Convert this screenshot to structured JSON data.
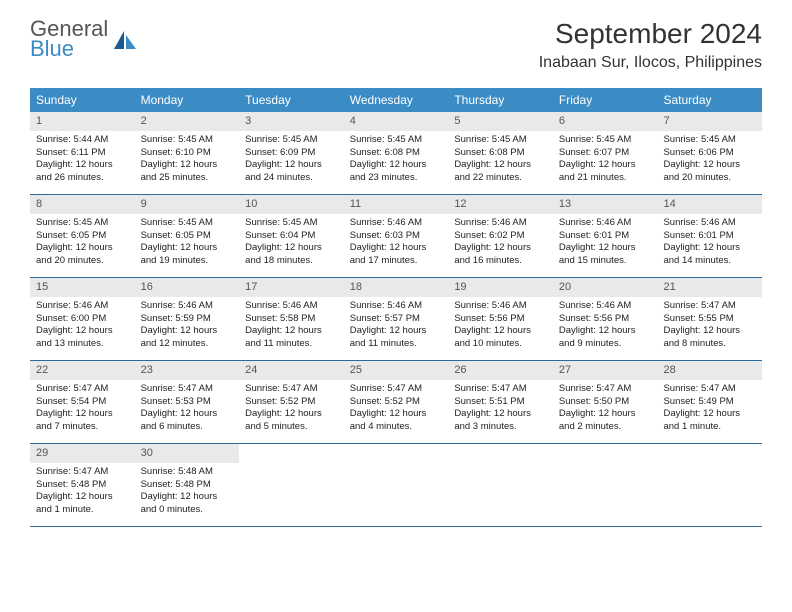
{
  "brand": {
    "line1": "General",
    "line2": "Blue"
  },
  "title": "September 2024",
  "location": "Inabaan Sur, Ilocos, Philippines",
  "colors": {
    "header_bg": "#3b8bc4",
    "header_text": "#ffffff",
    "daynum_bg": "#e7e9ea",
    "daynum_text": "#555555",
    "week_border": "#2d6a9c",
    "body_text": "#222222",
    "page_bg": "#ffffff"
  },
  "day_names": [
    "Sunday",
    "Monday",
    "Tuesday",
    "Wednesday",
    "Thursday",
    "Friday",
    "Saturday"
  ],
  "days": [
    {
      "n": "1",
      "sunrise": "Sunrise: 5:44 AM",
      "sunset": "Sunset: 6:11 PM",
      "day1": "Daylight: 12 hours",
      "day2": "and 26 minutes."
    },
    {
      "n": "2",
      "sunrise": "Sunrise: 5:45 AM",
      "sunset": "Sunset: 6:10 PM",
      "day1": "Daylight: 12 hours",
      "day2": "and 25 minutes."
    },
    {
      "n": "3",
      "sunrise": "Sunrise: 5:45 AM",
      "sunset": "Sunset: 6:09 PM",
      "day1": "Daylight: 12 hours",
      "day2": "and 24 minutes."
    },
    {
      "n": "4",
      "sunrise": "Sunrise: 5:45 AM",
      "sunset": "Sunset: 6:08 PM",
      "day1": "Daylight: 12 hours",
      "day2": "and 23 minutes."
    },
    {
      "n": "5",
      "sunrise": "Sunrise: 5:45 AM",
      "sunset": "Sunset: 6:08 PM",
      "day1": "Daylight: 12 hours",
      "day2": "and 22 minutes."
    },
    {
      "n": "6",
      "sunrise": "Sunrise: 5:45 AM",
      "sunset": "Sunset: 6:07 PM",
      "day1": "Daylight: 12 hours",
      "day2": "and 21 minutes."
    },
    {
      "n": "7",
      "sunrise": "Sunrise: 5:45 AM",
      "sunset": "Sunset: 6:06 PM",
      "day1": "Daylight: 12 hours",
      "day2": "and 20 minutes."
    },
    {
      "n": "8",
      "sunrise": "Sunrise: 5:45 AM",
      "sunset": "Sunset: 6:05 PM",
      "day1": "Daylight: 12 hours",
      "day2": "and 20 minutes."
    },
    {
      "n": "9",
      "sunrise": "Sunrise: 5:45 AM",
      "sunset": "Sunset: 6:05 PM",
      "day1": "Daylight: 12 hours",
      "day2": "and 19 minutes."
    },
    {
      "n": "10",
      "sunrise": "Sunrise: 5:45 AM",
      "sunset": "Sunset: 6:04 PM",
      "day1": "Daylight: 12 hours",
      "day2": "and 18 minutes."
    },
    {
      "n": "11",
      "sunrise": "Sunrise: 5:46 AM",
      "sunset": "Sunset: 6:03 PM",
      "day1": "Daylight: 12 hours",
      "day2": "and 17 minutes."
    },
    {
      "n": "12",
      "sunrise": "Sunrise: 5:46 AM",
      "sunset": "Sunset: 6:02 PM",
      "day1": "Daylight: 12 hours",
      "day2": "and 16 minutes."
    },
    {
      "n": "13",
      "sunrise": "Sunrise: 5:46 AM",
      "sunset": "Sunset: 6:01 PM",
      "day1": "Daylight: 12 hours",
      "day2": "and 15 minutes."
    },
    {
      "n": "14",
      "sunrise": "Sunrise: 5:46 AM",
      "sunset": "Sunset: 6:01 PM",
      "day1": "Daylight: 12 hours",
      "day2": "and 14 minutes."
    },
    {
      "n": "15",
      "sunrise": "Sunrise: 5:46 AM",
      "sunset": "Sunset: 6:00 PM",
      "day1": "Daylight: 12 hours",
      "day2": "and 13 minutes."
    },
    {
      "n": "16",
      "sunrise": "Sunrise: 5:46 AM",
      "sunset": "Sunset: 5:59 PM",
      "day1": "Daylight: 12 hours",
      "day2": "and 12 minutes."
    },
    {
      "n": "17",
      "sunrise": "Sunrise: 5:46 AM",
      "sunset": "Sunset: 5:58 PM",
      "day1": "Daylight: 12 hours",
      "day2": "and 11 minutes."
    },
    {
      "n": "18",
      "sunrise": "Sunrise: 5:46 AM",
      "sunset": "Sunset: 5:57 PM",
      "day1": "Daylight: 12 hours",
      "day2": "and 11 minutes."
    },
    {
      "n": "19",
      "sunrise": "Sunrise: 5:46 AM",
      "sunset": "Sunset: 5:56 PM",
      "day1": "Daylight: 12 hours",
      "day2": "and 10 minutes."
    },
    {
      "n": "20",
      "sunrise": "Sunrise: 5:46 AM",
      "sunset": "Sunset: 5:56 PM",
      "day1": "Daylight: 12 hours",
      "day2": "and 9 minutes."
    },
    {
      "n": "21",
      "sunrise": "Sunrise: 5:47 AM",
      "sunset": "Sunset: 5:55 PM",
      "day1": "Daylight: 12 hours",
      "day2": "and 8 minutes."
    },
    {
      "n": "22",
      "sunrise": "Sunrise: 5:47 AM",
      "sunset": "Sunset: 5:54 PM",
      "day1": "Daylight: 12 hours",
      "day2": "and 7 minutes."
    },
    {
      "n": "23",
      "sunrise": "Sunrise: 5:47 AM",
      "sunset": "Sunset: 5:53 PM",
      "day1": "Daylight: 12 hours",
      "day2": "and 6 minutes."
    },
    {
      "n": "24",
      "sunrise": "Sunrise: 5:47 AM",
      "sunset": "Sunset: 5:52 PM",
      "day1": "Daylight: 12 hours",
      "day2": "and 5 minutes."
    },
    {
      "n": "25",
      "sunrise": "Sunrise: 5:47 AM",
      "sunset": "Sunset: 5:52 PM",
      "day1": "Daylight: 12 hours",
      "day2": "and 4 minutes."
    },
    {
      "n": "26",
      "sunrise": "Sunrise: 5:47 AM",
      "sunset": "Sunset: 5:51 PM",
      "day1": "Daylight: 12 hours",
      "day2": "and 3 minutes."
    },
    {
      "n": "27",
      "sunrise": "Sunrise: 5:47 AM",
      "sunset": "Sunset: 5:50 PM",
      "day1": "Daylight: 12 hours",
      "day2": "and 2 minutes."
    },
    {
      "n": "28",
      "sunrise": "Sunrise: 5:47 AM",
      "sunset": "Sunset: 5:49 PM",
      "day1": "Daylight: 12 hours",
      "day2": "and 1 minute."
    },
    {
      "n": "29",
      "sunrise": "Sunrise: 5:47 AM",
      "sunset": "Sunset: 5:48 PM",
      "day1": "Daylight: 12 hours",
      "day2": "and 1 minute."
    },
    {
      "n": "30",
      "sunrise": "Sunrise: 5:48 AM",
      "sunset": "Sunset: 5:48 PM",
      "day1": "Daylight: 12 hours",
      "day2": "and 0 minutes."
    }
  ]
}
